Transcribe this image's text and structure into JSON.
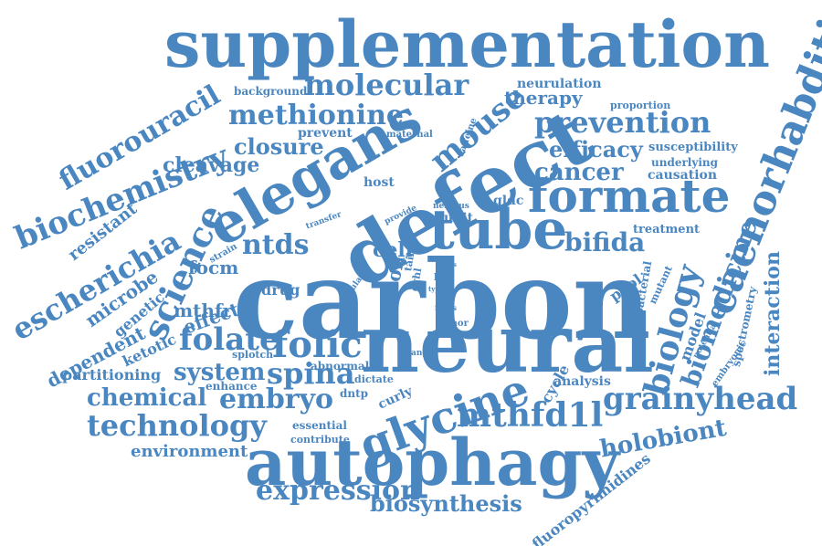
{
  "words": {
    "carbon": "carbon",
    "neural": "neural",
    "defect": "defect",
    "supplementation": "supplementation",
    "autophagy": "autophagy",
    "elegans": "elegans",
    "tube": "tube",
    "formate": "formate",
    "caenorhabditis": "caenorhabditis",
    "glycine": "glycine",
    "grainyhead": "grainyhead",
    "mthfd1l": "mthfd1l",
    "molecular": "molecular",
    "methionine": "methionine",
    "prevention": "prevention",
    "mouse": "mouse",
    "biochemistry": "biochemistry",
    "fluorouracil": "fluorouracil",
    "science": "science",
    "escherichia": "escherichia",
    "biology": "biology",
    "biomedicine": "biomedicine",
    "interaction": "interaction",
    "cancer": "cancer",
    "efficacy": "efficacy",
    "therapy": "therapy",
    "bifida": "bifida",
    "ntds": "ntds",
    "folic": "folic",
    "folate": "folate",
    "spina": "spina",
    "embryo": "embryo",
    "technology": "technology",
    "chemical": "chemical",
    "system": "system",
    "expression": "expression",
    "biosynthesis": "biosynthesis",
    "holobiont": "holobiont",
    "environment": "environment",
    "fluoropyrimidines": "fluoropyrimidines",
    "cleavage": "cleavage",
    "closure": "closure",
    "dependent": "dependent",
    "microbe": "microbe",
    "resistant": "resistant",
    "mthfr": "mthfr",
    "focm": "focm",
    "effect": "effect",
    "drug": "drug",
    "cell": "cell",
    "coli": "coli",
    "ketotic": "ketotic",
    "genetic": "genetic",
    "partitioning": "partitioning",
    "model": "model",
    "pool": "pool",
    "analysis": "analysis",
    "cycle": "cycle",
    "neurulation": "neurulation",
    "background": "background",
    "proportion": "proportion",
    "susceptibility": "susceptibility",
    "underlying": "underlying",
    "causation": "causation",
    "treatment": "treatment",
    "prevent": "prevent",
    "maternal": "maternal",
    "caffeine": "caffeine",
    "host": "host",
    "gldc": "gldc",
    "unit": "unit",
    "nervous": "nervous",
    "provide": "provide",
    "transfer": "transfer",
    "strain": "strain",
    "abnormal": "abnormal",
    "splotch": "splotch",
    "enhance": "enhance",
    "dntp": "dntp",
    "curly": "curly",
    "dictate": "dictate",
    "change": "change",
    "essential": "essential",
    "contribute": "contribute",
    "donor": "donor",
    "factor": "factor",
    "grhl": "grhl",
    "life": "life",
    "focus": "focus",
    "study": "study",
    "type": "type",
    "basis": "basis",
    "cellular": "cellular",
    "tail": "tail",
    "bacterial": "bacterial",
    "mutant": "mutant",
    "potential": "potential",
    "embryonic": "embryonic",
    "spectrometry": "spectrometry"
  },
  "colors": {
    "word": "#4a86c0",
    "background": "#ffffff"
  }
}
